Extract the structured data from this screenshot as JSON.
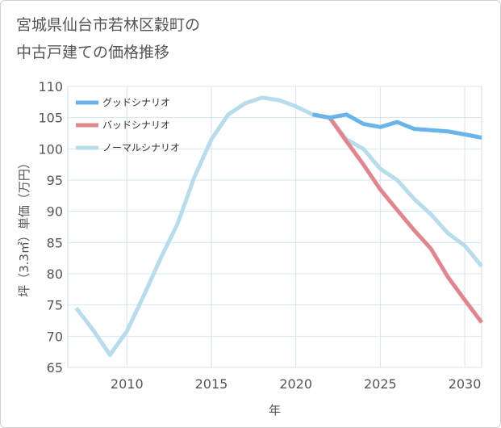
{
  "chart_data": {
    "type": "line",
    "title_line1": "宮城県仙台市若林区穀町の",
    "title_line2": "中古戸建ての価格推移",
    "xlabel": "年",
    "ylabel": "坪（3.3㎡）単価（万円）",
    "xlim": [
      2006.5,
      2031
    ],
    "ylim": [
      65,
      110
    ],
    "xticks": [
      2010,
      2015,
      2020,
      2025,
      2030
    ],
    "yticks": [
      65,
      70,
      75,
      80,
      85,
      90,
      95,
      100,
      105,
      110
    ],
    "grid": true,
    "legend_position": "top-left",
    "series": [
      {
        "name": "グッドシナリオ",
        "color": "#6ab4ec",
        "points": [
          [
            2021,
            105.5
          ],
          [
            2022,
            105.0
          ],
          [
            2023,
            105.5
          ],
          [
            2024,
            104.0
          ],
          [
            2025,
            103.5
          ],
          [
            2026,
            104.3
          ],
          [
            2027,
            103.2
          ],
          [
            2028,
            103.0
          ],
          [
            2029,
            102.8
          ],
          [
            2030,
            102.3
          ],
          [
            2031,
            101.8
          ]
        ]
      },
      {
        "name": "バッドシナリオ",
        "color": "#e0868f",
        "points": [
          [
            2021,
            105.5
          ],
          [
            2022,
            105.0
          ],
          [
            2023,
            101.2
          ],
          [
            2024,
            97.5
          ],
          [
            2025,
            93.5
          ],
          [
            2026,
            90.2
          ],
          [
            2027,
            87.0
          ],
          [
            2028,
            84.0
          ],
          [
            2029,
            79.5
          ],
          [
            2030,
            75.8
          ],
          [
            2031,
            72.2
          ]
        ]
      },
      {
        "name": "ノーマルシナリオ",
        "color": "#b8dcec",
        "points": [
          [
            2007,
            74.5
          ],
          [
            2008,
            71.0
          ],
          [
            2009,
            67.0
          ],
          [
            2010,
            70.8
          ],
          [
            2011,
            76.5
          ],
          [
            2012,
            82.5
          ],
          [
            2013,
            88.0
          ],
          [
            2014,
            95.5
          ],
          [
            2015,
            101.5
          ],
          [
            2016,
            105.5
          ],
          [
            2017,
            107.3
          ],
          [
            2018,
            108.2
          ],
          [
            2019,
            107.8
          ],
          [
            2020,
            106.8
          ],
          [
            2021,
            105.5
          ],
          [
            2022,
            105.0
          ],
          [
            2023,
            101.5
          ],
          [
            2024,
            100.0
          ],
          [
            2025,
            96.8
          ],
          [
            2026,
            95.0
          ],
          [
            2027,
            92.0
          ],
          [
            2028,
            89.5
          ],
          [
            2029,
            86.5
          ],
          [
            2030,
            84.5
          ],
          [
            2031,
            81.2
          ]
        ]
      }
    ]
  }
}
